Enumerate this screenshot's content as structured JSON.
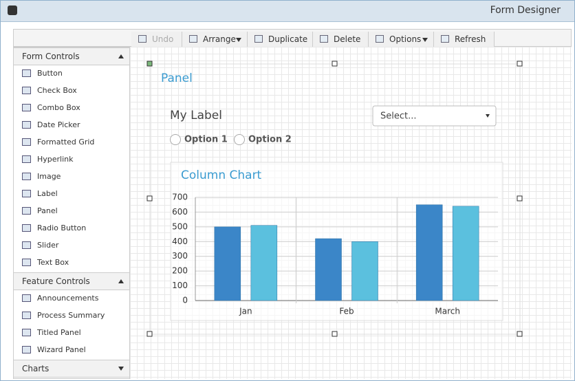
{
  "window": {
    "title": "Form Designer"
  },
  "toolbar": {
    "buttons": [
      "Undo",
      "Arrange",
      "Duplicate",
      "Delete",
      "Options",
      "Refresh"
    ]
  },
  "sidebar": {
    "sections": [
      {
        "title": "Form Controls",
        "items": [
          "Button",
          "Check Box",
          "Combo Box",
          "Date Picker",
          "Formatted Grid",
          "Hyperlink",
          "Image",
          "Label",
          "Panel",
          "Radio Button",
          "Slider",
          "Text Box"
        ]
      },
      {
        "title": "Feature Controls",
        "items": [
          "Announcements",
          "Process Summary",
          "Titled Panel",
          "Wizard Panel"
        ]
      },
      {
        "title": "Charts",
        "items": []
      }
    ]
  },
  "form": {
    "panel_title": "Panel",
    "label": "My Label",
    "select": "Select...",
    "options": [
      "Option 1",
      "Option 2"
    ]
  },
  "chart_data": {
    "type": "bar",
    "title": "Column Chart",
    "categories": [
      "Jan",
      "Feb",
      "March"
    ],
    "series": [
      {
        "color": "#3b86c8",
        "values": [
          500,
          420,
          650
        ]
      },
      {
        "color": "#5bc0de",
        "values": [
          510,
          400,
          640
        ]
      }
    ],
    "ylim": [
      0,
      700
    ],
    "yticks": [
      0,
      100,
      200,
      300,
      400,
      500,
      600,
      700
    ],
    "grid": true
  }
}
